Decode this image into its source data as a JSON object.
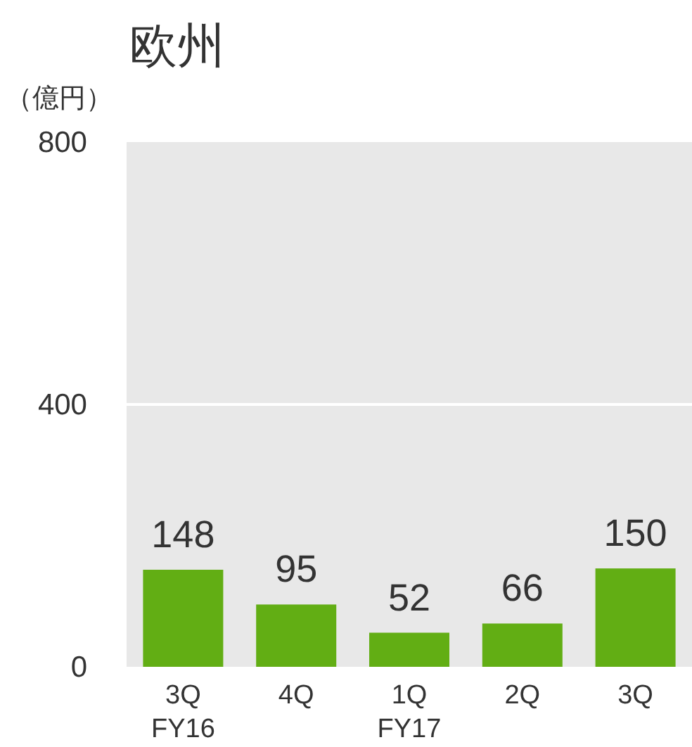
{
  "chart_data": {
    "type": "bar",
    "title": "欧州",
    "ylabel": "（億円）",
    "categories": [
      "3Q FY16",
      "4Q",
      "1Q FY17",
      "2Q",
      "3Q"
    ],
    "values": [
      148,
      95,
      52,
      66,
      150
    ],
    "color": "#62ae14",
    "ylim": [
      0,
      800
    ],
    "yticks": [
      0,
      400,
      800
    ],
    "grid": "y",
    "data_labels": true
  }
}
